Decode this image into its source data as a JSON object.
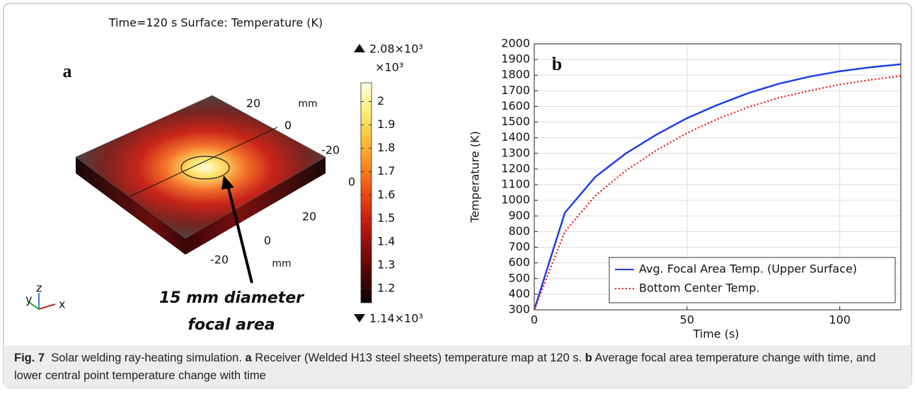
{
  "panel_a": {
    "label": "a",
    "title": "Time=120 s   Surface: Temperature (K)",
    "axis_labels": [
      "20",
      "mm",
      "0",
      "-20",
      "0",
      "20",
      "0",
      "-20",
      "mm"
    ],
    "triad": [
      "y",
      "z",
      "x"
    ],
    "annotation": [
      "15 mm diameter",
      "focal area"
    ],
    "colorbar": {
      "max_label": "2.08×10³",
      "multiplier": "×10³",
      "min_label": "1.14×10³",
      "lim": [
        1.14,
        2.08
      ],
      "ticks": [
        1.2,
        1.3,
        1.4,
        1.5,
        1.6,
        1.7,
        1.8,
        1.9,
        2
      ],
      "colors": [
        "#0a0000",
        "#4a0505",
        "#8a0c0c",
        "#c81e10",
        "#ee4a14",
        "#f88a22",
        "#fcc43a",
        "#fdf07a",
        "#fffde6"
      ]
    }
  },
  "chart_data": {
    "type": "line",
    "label": "b",
    "xlabel": "Time (s)",
    "ylabel": "Temperature (K)",
    "x": [
      0,
      10,
      20,
      30,
      40,
      50,
      60,
      70,
      80,
      90,
      100,
      110,
      120
    ],
    "series": [
      {
        "name": "Avg. Focal Area Temp. (Upper Surface)",
        "color": "#1f3fe6",
        "linestyle": "solid",
        "values": [
          300,
          920,
          1150,
          1300,
          1420,
          1525,
          1610,
          1685,
          1745,
          1790,
          1825,
          1850,
          1870
        ]
      },
      {
        "name": "Bottom Center Temp.",
        "color": "#ee1111",
        "linestyle": "dotted",
        "values": [
          300,
          800,
          1030,
          1190,
          1320,
          1430,
          1520,
          1595,
          1655,
          1700,
          1740,
          1770,
          1795
        ]
      }
    ],
    "xlim": [
      0,
      120
    ],
    "ylim": [
      300,
      2000
    ],
    "xticks": [
      0,
      50,
      100
    ],
    "yticks": [
      300,
      400,
      500,
      600,
      700,
      800,
      900,
      1000,
      1100,
      1200,
      1300,
      1400,
      1500,
      1600,
      1700,
      1800,
      1900,
      2000
    ],
    "grid": true,
    "legend": "lower right"
  },
  "caption": [
    {
      "text": "Fig. 7",
      "bold": true
    },
    {
      "text": "  Solar welding ray-heating simulation. ",
      "bold": false
    },
    {
      "text": "a",
      "bold": true
    },
    {
      "text": " Receiver (Welded H13 steel sheets) temperature map at 120 s. ",
      "bold": false
    },
    {
      "text": "b",
      "bold": true
    },
    {
      "text": " Average focal area temperature change with time, and lower central point temperature change with time",
      "bold": false
    }
  ]
}
